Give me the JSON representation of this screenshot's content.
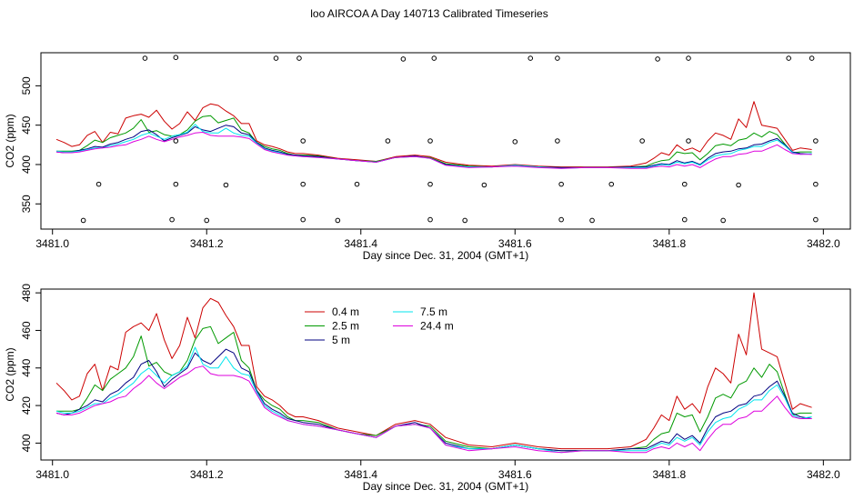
{
  "page": {
    "title": "loo AIRCOA A  Day 140713  Calibrated Timeseries"
  },
  "colors": {
    "0.4 m": "#cc0000",
    "2.5 m": "#009900",
    "5 m": "#000080",
    "7.5 m": "#00e5ee",
    "24.4 m": "#dd00dd"
  },
  "chart_data": [
    {
      "type": "line",
      "panel": "top",
      "title": "",
      "xlabel": "Day since Dec. 31, 2004 (GMT+1)",
      "ylabel": "CO2 (ppm)",
      "xlim": [
        3480.985,
        3482.035
      ],
      "ylim": [
        318,
        542
      ],
      "xticks": [
        3481.0,
        3481.2,
        3481.4,
        3481.6,
        3481.8,
        3482.0
      ],
      "xtick_labels": [
        "3481.0",
        "3481.2",
        "3481.4",
        "3481.6",
        "3481.8",
        "3482.0"
      ],
      "yticks": [
        350,
        400,
        450,
        500
      ],
      "ytick_labels": [
        "350",
        "400",
        "450",
        "500"
      ],
      "grid": false,
      "series_ref": "bottom",
      "calibration_points": {
        "x": [
          3481.04,
          3481.06,
          3481.12,
          3481.155,
          3481.16,
          3481.16,
          3481.16,
          3481.2,
          3481.225,
          3481.29,
          3481.32,
          3481.325,
          3481.325,
          3481.325,
          3481.37,
          3481.395,
          3481.435,
          3481.455,
          3481.49,
          3481.49,
          3481.49,
          3481.495,
          3481.535,
          3481.56,
          3481.6,
          3481.62,
          3481.655,
          3481.655,
          3481.66,
          3481.66,
          3481.7,
          3481.725,
          3481.765,
          3481.785,
          3481.82,
          3481.82,
          3481.825,
          3481.825,
          3481.87,
          3481.89,
          3481.955,
          3481.985,
          3481.99,
          3481.99,
          3481.99
        ],
        "y": [
          329,
          375,
          535,
          330,
          375,
          430,
          536,
          329,
          374,
          535,
          535,
          430,
          375,
          330,
          329,
          375,
          430,
          534,
          330,
          375,
          430,
          535,
          329,
          374,
          429,
          535,
          535,
          430,
          375,
          330,
          329,
          375,
          430,
          534,
          330,
          375,
          430,
          535,
          329,
          374,
          535,
          535,
          430,
          375,
          330
        ]
      }
    },
    {
      "type": "line",
      "panel": "bottom",
      "title": "",
      "xlabel": "Day since Dec. 31, 2004 (GMT+1)",
      "ylabel": "CO2 (ppm)",
      "xlim": [
        3480.985,
        3482.035
      ],
      "ylim": [
        391,
        482
      ],
      "xticks": [
        3481.0,
        3481.2,
        3481.4,
        3481.6,
        3481.8,
        3482.0
      ],
      "xtick_labels": [
        "3481.0",
        "3481.2",
        "3481.4",
        "3481.6",
        "3481.8",
        "3482.0"
      ],
      "yticks": [
        400,
        420,
        440,
        460,
        480
      ],
      "ytick_labels": [
        "400",
        "420",
        "440",
        "460",
        "480"
      ],
      "grid": false,
      "legend": {
        "placement": "top-left",
        "entries": [
          "0.4 m",
          "2.5 m",
          "5 m",
          "7.5 m",
          "24.4 m"
        ]
      },
      "series": [
        {
          "name": "0.4 m",
          "x": [
            3481.005,
            3481.015,
            3481.025,
            3481.035,
            3481.045,
            3481.055,
            3481.065,
            3481.075,
            3481.085,
            3481.095,
            3481.105,
            3481.115,
            3481.125,
            3481.135,
            3481.145,
            3481.155,
            3481.165,
            3481.175,
            3481.185,
            3481.195,
            3481.205,
            3481.215,
            3481.225,
            3481.235,
            3481.245,
            3481.255,
            3481.265,
            3481.275,
            3481.285,
            3481.295,
            3481.305,
            3481.315,
            3481.325,
            3481.345,
            3481.37,
            3481.395,
            3481.42,
            3481.445,
            3481.47,
            3481.49,
            3481.51,
            3481.54,
            3481.57,
            3481.6,
            3481.63,
            3481.66,
            3481.69,
            3481.72,
            3481.75,
            3481.77,
            3481.78,
            3481.79,
            3481.8,
            3481.81,
            3481.82,
            3481.83,
            3481.84,
            3481.85,
            3481.86,
            3481.87,
            3481.88,
            3481.89,
            3481.9,
            3481.91,
            3481.92,
            3481.93,
            3481.94,
            3481.95,
            3481.96,
            3481.97,
            3481.985
          ],
          "values": [
            432,
            428,
            423,
            425,
            437,
            442,
            428,
            441,
            439,
            459,
            462,
            464,
            460,
            469,
            455,
            445,
            452,
            467,
            456,
            472,
            477,
            475,
            468,
            462,
            452,
            452,
            430,
            425,
            423,
            420,
            416,
            414,
            414,
            412,
            408,
            406,
            404,
            410,
            412,
            410,
            403,
            399,
            398,
            400,
            398,
            397,
            397,
            397,
            398,
            402,
            408,
            415,
            412,
            425,
            418,
            421,
            416,
            430,
            440,
            437,
            432,
            458,
            447,
            480,
            450,
            448,
            446,
            432,
            418,
            421,
            419
          ]
        },
        {
          "name": "2.5 m",
          "x": [
            3481.005,
            3481.015,
            3481.025,
            3481.035,
            3481.045,
            3481.055,
            3481.065,
            3481.075,
            3481.085,
            3481.095,
            3481.105,
            3481.115,
            3481.125,
            3481.135,
            3481.145,
            3481.155,
            3481.165,
            3481.175,
            3481.185,
            3481.195,
            3481.205,
            3481.215,
            3481.225,
            3481.235,
            3481.245,
            3481.255,
            3481.265,
            3481.275,
            3481.285,
            3481.295,
            3481.305,
            3481.315,
            3481.325,
            3481.345,
            3481.37,
            3481.395,
            3481.42,
            3481.445,
            3481.47,
            3481.49,
            3481.51,
            3481.54,
            3481.57,
            3481.6,
            3481.63,
            3481.66,
            3481.69,
            3481.72,
            3481.75,
            3481.77,
            3481.78,
            3481.79,
            3481.8,
            3481.81,
            3481.82,
            3481.83,
            3481.84,
            3481.85,
            3481.86,
            3481.87,
            3481.88,
            3481.89,
            3481.9,
            3481.91,
            3481.92,
            3481.93,
            3481.94,
            3481.95,
            3481.96,
            3481.97,
            3481.985
          ],
          "values": [
            417,
            417,
            417,
            418,
            424,
            431,
            428,
            434,
            437,
            440,
            446,
            457,
            441,
            443,
            438,
            436,
            438,
            444,
            455,
            461,
            462,
            453,
            456,
            459,
            444,
            440,
            428,
            423,
            420,
            418,
            414,
            412,
            412,
            411,
            407,
            405,
            404,
            409,
            410,
            409,
            401,
            398,
            397,
            399,
            397,
            396,
            396,
            396,
            397,
            398,
            402,
            405,
            406,
            416,
            414,
            415,
            406,
            414,
            424,
            426,
            424,
            431,
            433,
            440,
            435,
            442,
            438,
            426,
            415,
            416,
            416
          ]
        },
        {
          "name": "5 m",
          "x": [
            3481.005,
            3481.015,
            3481.025,
            3481.035,
            3481.045,
            3481.055,
            3481.065,
            3481.075,
            3481.085,
            3481.095,
            3481.105,
            3481.115,
            3481.125,
            3481.135,
            3481.145,
            3481.155,
            3481.165,
            3481.175,
            3481.185,
            3481.195,
            3481.205,
            3481.215,
            3481.225,
            3481.235,
            3481.245,
            3481.255,
            3481.265,
            3481.275,
            3481.285,
            3481.295,
            3481.305,
            3481.315,
            3481.325,
            3481.345,
            3481.37,
            3481.395,
            3481.42,
            3481.445,
            3481.47,
            3481.49,
            3481.51,
            3481.54,
            3481.57,
            3481.6,
            3481.63,
            3481.66,
            3481.69,
            3481.72,
            3481.75,
            3481.77,
            3481.78,
            3481.79,
            3481.8,
            3481.81,
            3481.82,
            3481.83,
            3481.84,
            3481.85,
            3481.86,
            3481.87,
            3481.88,
            3481.89,
            3481.9,
            3481.91,
            3481.92,
            3481.93,
            3481.94,
            3481.95,
            3481.96,
            3481.97,
            3481.985
          ],
          "values": [
            416,
            415,
            416,
            418,
            420,
            423,
            422,
            426,
            428,
            432,
            435,
            442,
            444,
            438,
            430,
            434,
            437,
            440,
            448,
            444,
            442,
            446,
            450,
            448,
            440,
            438,
            428,
            421,
            418,
            416,
            413,
            412,
            411,
            410,
            407,
            405,
            403,
            409,
            411,
            408,
            400,
            397,
            397,
            399,
            397,
            396,
            396,
            396,
            397,
            397,
            399,
            401,
            400,
            405,
            402,
            404,
            400,
            408,
            414,
            416,
            417,
            420,
            421,
            425,
            426,
            430,
            433,
            425,
            416,
            414,
            413
          ]
        },
        {
          "name": "7.5 m",
          "x": [
            3481.005,
            3481.015,
            3481.025,
            3481.035,
            3481.045,
            3481.055,
            3481.065,
            3481.075,
            3481.085,
            3481.095,
            3481.105,
            3481.115,
            3481.125,
            3481.135,
            3481.145,
            3481.155,
            3481.165,
            3481.175,
            3481.185,
            3481.195,
            3481.205,
            3481.215,
            3481.225,
            3481.235,
            3481.245,
            3481.255,
            3481.265,
            3481.275,
            3481.285,
            3481.295,
            3481.305,
            3481.315,
            3481.325,
            3481.345,
            3481.37,
            3481.395,
            3481.42,
            3481.445,
            3481.47,
            3481.49,
            3481.51,
            3481.54,
            3481.57,
            3481.6,
            3481.63,
            3481.66,
            3481.69,
            3481.72,
            3481.75,
            3481.77,
            3481.78,
            3481.79,
            3481.8,
            3481.81,
            3481.82,
            3481.83,
            3481.84,
            3481.85,
            3481.86,
            3481.87,
            3481.88,
            3481.89,
            3481.9,
            3481.91,
            3481.92,
            3481.93,
            3481.94,
            3481.95,
            3481.96,
            3481.97,
            3481.985
          ],
          "values": [
            417,
            416,
            416,
            417,
            419,
            421,
            421,
            424,
            426,
            429,
            432,
            437,
            440,
            436,
            432,
            436,
            438,
            441,
            451,
            442,
            440,
            440,
            446,
            440,
            437,
            436,
            427,
            420,
            417,
            415,
            412,
            411,
            410,
            409,
            407,
            405,
            403,
            409,
            410,
            408,
            399,
            397,
            397,
            399,
            397,
            395,
            396,
            396,
            396,
            396,
            398,
            400,
            399,
            403,
            401,
            403,
            399,
            406,
            411,
            413,
            414,
            418,
            420,
            423,
            423,
            428,
            431,
            424,
            415,
            413,
            414
          ]
        },
        {
          "name": "24.4 m",
          "x": [
            3481.005,
            3481.015,
            3481.025,
            3481.035,
            3481.045,
            3481.055,
            3481.065,
            3481.075,
            3481.085,
            3481.095,
            3481.105,
            3481.115,
            3481.125,
            3481.135,
            3481.145,
            3481.155,
            3481.165,
            3481.175,
            3481.185,
            3481.195,
            3481.205,
            3481.215,
            3481.225,
            3481.235,
            3481.245,
            3481.255,
            3481.265,
            3481.275,
            3481.285,
            3481.295,
            3481.305,
            3481.315,
            3481.325,
            3481.345,
            3481.37,
            3481.395,
            3481.42,
            3481.445,
            3481.47,
            3481.49,
            3481.51,
            3481.54,
            3481.57,
            3481.6,
            3481.63,
            3481.66,
            3481.69,
            3481.72,
            3481.75,
            3481.77,
            3481.78,
            3481.79,
            3481.8,
            3481.81,
            3481.82,
            3481.83,
            3481.84,
            3481.85,
            3481.86,
            3481.87,
            3481.88,
            3481.89,
            3481.9,
            3481.91,
            3481.92,
            3481.93,
            3481.94,
            3481.95,
            3481.96,
            3481.97,
            3481.985
          ],
          "values": [
            416,
            415,
            415,
            416,
            418,
            420,
            421,
            422,
            424,
            425,
            429,
            432,
            436,
            432,
            429,
            432,
            435,
            437,
            440,
            441,
            437,
            436,
            436,
            436,
            435,
            433,
            426,
            419,
            416,
            414,
            412,
            411,
            410,
            409,
            407,
            405,
            403,
            409,
            410,
            408,
            399,
            396,
            397,
            398,
            396,
            395,
            396,
            396,
            395,
            395,
            397,
            398,
            397,
            400,
            398,
            400,
            396,
            402,
            407,
            410,
            410,
            413,
            414,
            417,
            417,
            421,
            425,
            419,
            414,
            413,
            413
          ]
        }
      ]
    }
  ]
}
